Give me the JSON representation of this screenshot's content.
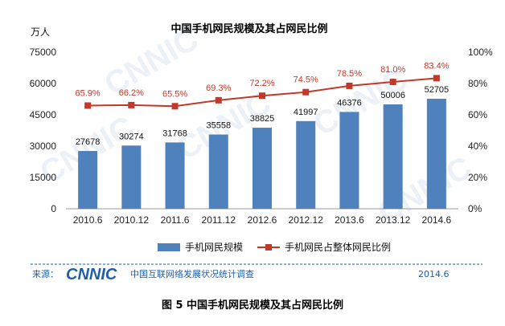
{
  "chart_data": {
    "type": "bar",
    "title": "中国手机网民规模及其占网民比例",
    "ylabel": "万人",
    "categories": [
      "2010.6",
      "2010.12",
      "2011.6",
      "2011.12",
      "2012.6",
      "2012.12",
      "2013.6",
      "2013.12",
      "2014.6"
    ],
    "ylim": [
      0,
      75000
    ],
    "yticks": [
      "75000",
      "60000",
      "45000",
      "30000",
      "15000",
      "0"
    ],
    "y2lim": [
      0,
      100
    ],
    "y2ticks": [
      "100%",
      "80%",
      "60%",
      "40%",
      "20%",
      "0%"
    ],
    "series": [
      {
        "name": "手机网民规模",
        "type": "bar",
        "color": "#4f81bd",
        "values": [
          27678,
          30274,
          31768,
          35558,
          38825,
          41997,
          46376,
          50006,
          52705
        ],
        "labels": [
          "27678",
          "30274",
          "31768",
          "35558",
          "38825",
          "41997",
          "46376",
          "50006",
          "52705"
        ]
      },
      {
        "name": "手机网民占整体网民比例",
        "type": "line",
        "axis": "right",
        "color": "#c0392b",
        "values": [
          65.9,
          66.2,
          65.5,
          69.3,
          72.2,
          74.5,
          78.5,
          81.0,
          83.4
        ],
        "labels": [
          "65.9%",
          "66.2%",
          "65.5%",
          "69.3%",
          "72.2%",
          "74.5%",
          "78.5%",
          "81.0%",
          "83.4%"
        ]
      }
    ],
    "legend": "bottom",
    "grid": false
  },
  "footer": {
    "source_label": "来源：",
    "logo": "CNNIC",
    "org": "中国互联网络发展状况统计调查",
    "date": "2014.6"
  },
  "caption": "图 5 中国手机网民规模及其占网民比例"
}
